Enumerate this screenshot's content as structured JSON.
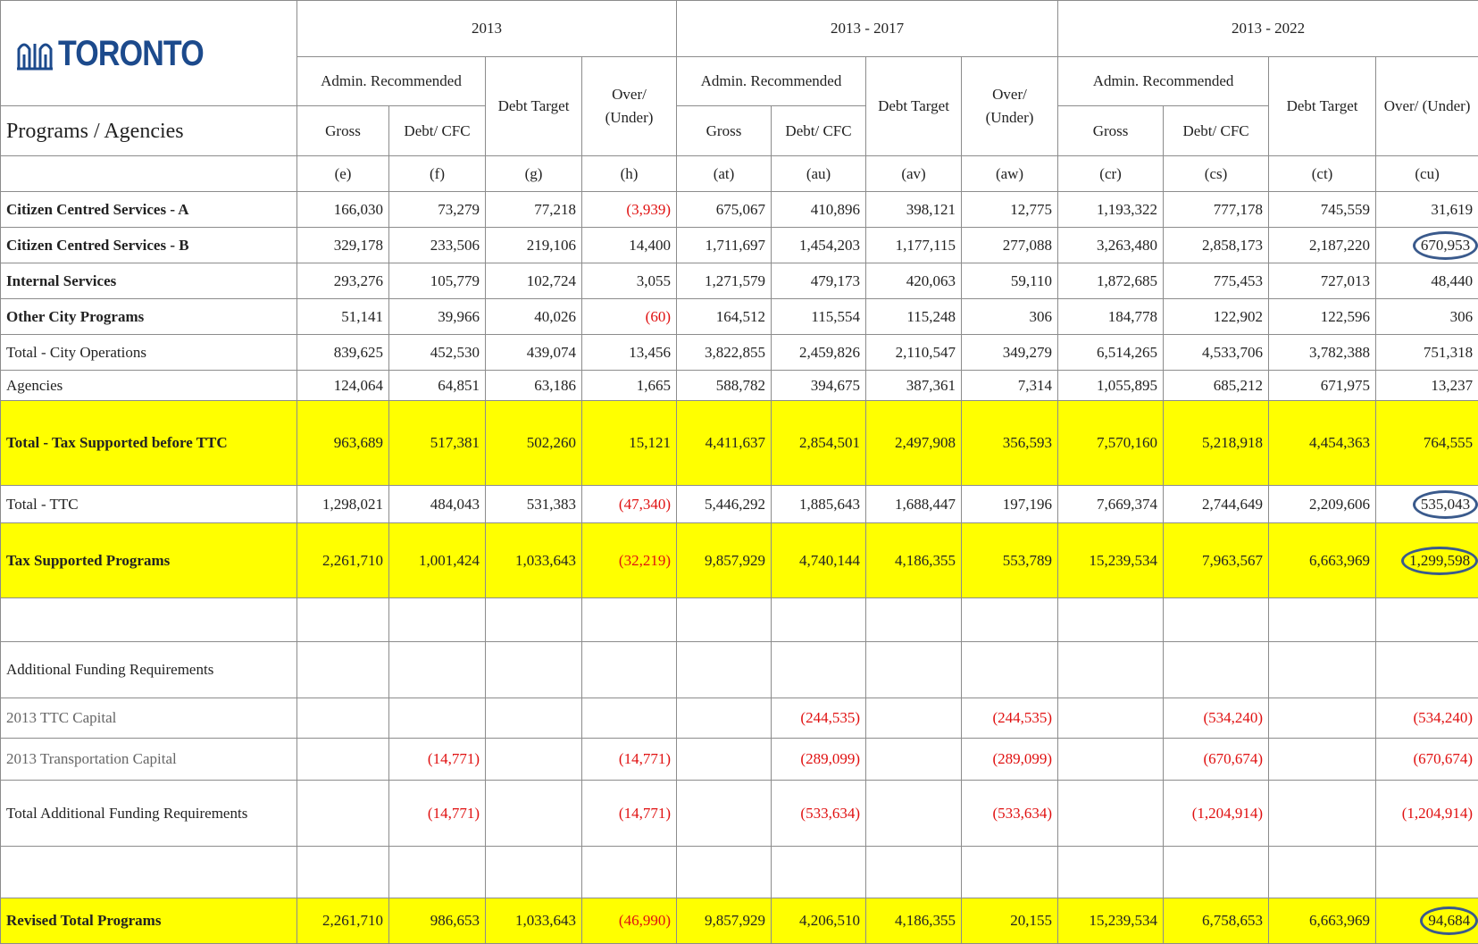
{
  "header": {
    "logo": "TORONTO",
    "label": "Programs / Agencies",
    "periods": [
      "2013",
      "2013 - 2017",
      "2013 - 2022"
    ],
    "admin": "Admin. Recommended",
    "debt_target": "Debt Target",
    "over_under": "Over/ (Under)",
    "gross": "Gross",
    "debt_cfc": "Debt/ CFC",
    "codes": [
      "(e)",
      "(f)",
      "(g)",
      "(h)",
      "(at)",
      "(au)",
      "(av)",
      "(aw)",
      "(cr)",
      "(cs)",
      "(ct)",
      "(cu)"
    ]
  },
  "table": {
    "rows": [
      {
        "label": "Citizen Centred Services - A",
        "bold": true,
        "cells": [
          "166,030",
          "73,279",
          "77,218",
          "(3,939)",
          "675,067",
          "410,896",
          "398,121",
          "12,775",
          "1,193,322",
          "777,178",
          "745,559",
          "31,619"
        ]
      },
      {
        "label": "Citizen Centred Services - B",
        "bold": true,
        "circled": [
          11
        ],
        "cells": [
          "329,178",
          "233,506",
          "219,106",
          "14,400",
          "1,711,697",
          "1,454,203",
          "1,177,115",
          "277,088",
          "3,263,480",
          "2,858,173",
          "2,187,220",
          "670,953"
        ]
      },
      {
        "label": "Internal Services",
        "bold": true,
        "cells": [
          "293,276",
          "105,779",
          "102,724",
          "3,055",
          "1,271,579",
          "479,173",
          "420,063",
          "59,110",
          "1,872,685",
          "775,453",
          "727,013",
          "48,440"
        ]
      },
      {
        "label": "Other City Programs",
        "bold": true,
        "cells": [
          "51,141",
          "39,966",
          "40,026",
          "(60)",
          "164,512",
          "115,554",
          "115,248",
          "306",
          "184,778",
          "122,902",
          "122,596",
          "306"
        ]
      },
      {
        "label": "Total - City Operations",
        "cells": [
          "839,625",
          "452,530",
          "439,074",
          "13,456",
          "3,822,855",
          "2,459,826",
          "2,110,547",
          "349,279",
          "6,514,265",
          "4,533,706",
          "3,782,388",
          "751,318"
        ]
      },
      {
        "label": "Agencies",
        "cells": [
          "124,064",
          "64,851",
          "63,186",
          "1,665",
          "588,782",
          "394,675",
          "387,361",
          "7,314",
          "1,055,895",
          "685,212",
          "671,975",
          "13,237"
        ]
      },
      {
        "label": "Total - Tax Supported before TTC",
        "bold": true,
        "highlight": true,
        "cells": [
          "963,689",
          "517,381",
          "502,260",
          "15,121",
          "4,411,637",
          "2,854,501",
          "2,497,908",
          "356,593",
          "7,570,160",
          "5,218,918",
          "4,454,363",
          "764,555"
        ]
      },
      {
        "label": "Total - TTC",
        "circled": [
          11
        ],
        "cells": [
          "1,298,021",
          "484,043",
          "531,383",
          "(47,340)",
          "5,446,292",
          "1,885,643",
          "1,688,447",
          "197,196",
          "7,669,374",
          "2,744,649",
          "2,209,606",
          "535,043"
        ]
      },
      {
        "label": "Tax Supported Programs",
        "bold": true,
        "highlight": true,
        "circled": [
          11
        ],
        "cells": [
          "2,261,710",
          "1,001,424",
          "1,033,643",
          "(32,219)",
          "9,857,929",
          "4,740,144",
          "4,186,355",
          "553,789",
          "15,239,534",
          "7,963,567",
          "6,663,969",
          "1,299,598"
        ]
      },
      {
        "label": "Additional Funding Requirements",
        "cells": [
          null,
          null,
          null,
          null,
          null,
          null,
          null,
          null,
          null,
          null,
          null,
          null
        ]
      },
      {
        "label": "2013 TTC Capital",
        "muted": true,
        "cells": [
          null,
          null,
          null,
          null,
          null,
          "(244,535)",
          null,
          "(244,535)",
          null,
          "(534,240)",
          null,
          "(534,240)"
        ]
      },
      {
        "label": "2013 Transportation Capital",
        "muted": true,
        "cells": [
          null,
          "(14,771)",
          null,
          "(14,771)",
          null,
          "(289,099)",
          null,
          "(289,099)",
          null,
          "(670,674)",
          null,
          "(670,674)"
        ]
      },
      {
        "label": "Total Additional Funding Requirements",
        "cells": [
          null,
          "(14,771)",
          null,
          "(14,771)",
          null,
          "(533,634)",
          null,
          "(533,634)",
          null,
          "(1,204,914)",
          null,
          "(1,204,914)"
        ]
      },
      {
        "label": "Revised Total Programs",
        "bold": true,
        "highlight": true,
        "circled": [
          11
        ],
        "cells": [
          "2,261,710",
          "986,653",
          "1,033,643",
          "(46,990)",
          "9,857,929",
          "4,206,510",
          "4,186,355",
          "20,155",
          "15,239,534",
          "6,758,653",
          "6,663,969",
          "94,684"
        ]
      }
    ]
  }
}
